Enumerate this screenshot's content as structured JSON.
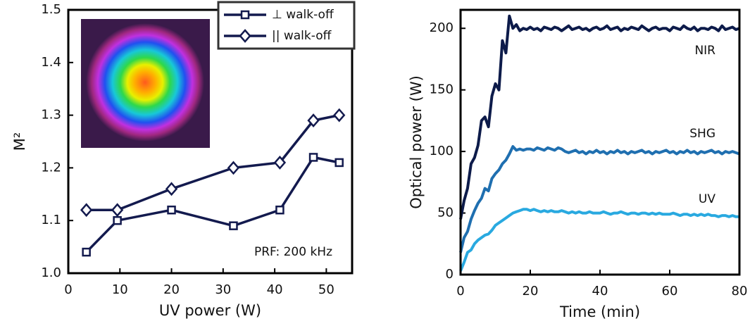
{
  "chart_data": [
    {
      "type": "line",
      "xlabel": "UV power (W)",
      "ylabel": "M²",
      "annotation": "PRF: 200 kHz",
      "x": [
        3.5,
        9.5,
        20,
        32,
        41,
        47.5,
        52.5
      ],
      "series": [
        {
          "name": "⊥ walk-off",
          "color": "#131a4e",
          "marker": "square",
          "values": [
            1.04,
            1.1,
            1.12,
            1.09,
            1.12,
            1.22,
            1.21
          ]
        },
        {
          "name": "|| walk-off",
          "color": "#131a4e",
          "marker": "diamond",
          "values": [
            1.12,
            1.12,
            1.16,
            1.2,
            1.21,
            1.29,
            1.3
          ]
        }
      ],
      "xlim": [
        0,
        55
      ],
      "xticks": [
        0,
        10,
        20,
        30,
        40,
        50
      ],
      "ylim": [
        1.0,
        1.5
      ],
      "yticks": [
        {
          "value": 1.0,
          "label": "1.0"
        },
        1.1,
        1.2,
        1.3,
        1.4,
        1.5
      ],
      "grid": false,
      "legend": "top-right"
    },
    {
      "type": "line",
      "xlabel": "Time (min)",
      "ylabel": "Optical power (W)",
      "x": [
        0,
        1,
        2,
        3,
        4,
        5,
        6,
        7,
        8,
        9,
        10,
        11,
        12,
        13,
        14,
        15,
        16,
        17,
        18,
        19,
        20,
        21,
        22,
        23,
        24,
        25,
        26,
        27,
        28,
        29,
        30,
        31,
        32,
        33,
        34,
        35,
        36,
        37,
        38,
        39,
        40,
        41,
        42,
        43,
        44,
        45,
        46,
        47,
        48,
        49,
        50,
        51,
        52,
        53,
        54,
        55,
        56,
        57,
        58,
        59,
        60,
        61,
        62,
        63,
        64,
        65,
        66,
        67,
        68,
        69,
        70,
        71,
        72,
        73,
        74,
        75,
        76,
        77,
        78,
        79,
        80
      ],
      "series": [
        {
          "name": "NIR",
          "color": "#0d1b4a",
          "values": [
            45,
            60,
            70,
            90,
            95,
            105,
            125,
            128,
            120,
            145,
            155,
            150,
            190,
            180,
            210,
            200,
            203,
            198,
            200,
            199,
            201,
            199,
            200,
            198,
            201,
            200,
            199,
            201,
            200,
            198,
            200,
            202,
            199,
            200,
            201,
            199,
            200,
            198,
            200,
            201,
            199,
            200,
            202,
            199,
            200,
            201,
            198,
            200,
            199,
            201,
            200,
            199,
            202,
            200,
            198,
            200,
            201,
            199,
            200,
            200,
            198,
            201,
            200,
            199,
            202,
            200,
            199,
            201,
            198,
            200,
            200,
            199,
            201,
            200,
            198,
            202,
            199,
            200,
            201,
            199,
            200
          ]
        },
        {
          "name": "SHG",
          "color": "#1f6fb0",
          "values": [
            18,
            30,
            35,
            45,
            52,
            58,
            62,
            70,
            68,
            78,
            82,
            85,
            90,
            93,
            98,
            104,
            101,
            102,
            101,
            102,
            102,
            101,
            103,
            102,
            101,
            103,
            102,
            101,
            103,
            102,
            100,
            99,
            100,
            101,
            99,
            100,
            98,
            100,
            99,
            101,
            99,
            100,
            98,
            100,
            99,
            101,
            99,
            100,
            98,
            100,
            99,
            100,
            101,
            99,
            100,
            98,
            100,
            99,
            100,
            101,
            99,
            100,
            98,
            100,
            99,
            101,
            99,
            100,
            98,
            100,
            99,
            100,
            101,
            99,
            100,
            98,
            100,
            99,
            100,
            99,
            98
          ]
        },
        {
          "name": "UV",
          "color": "#29a9e0",
          "values": [
            3,
            10,
            18,
            20,
            25,
            28,
            30,
            32,
            33,
            36,
            40,
            42,
            44,
            46,
            48,
            50,
            51,
            52,
            53,
            53,
            52,
            53,
            52,
            51,
            52,
            51,
            52,
            51,
            51,
            52,
            51,
            50,
            51,
            50,
            51,
            50,
            50,
            51,
            50,
            50,
            50,
            51,
            50,
            49,
            50,
            50,
            51,
            50,
            49,
            50,
            50,
            49,
            50,
            50,
            49,
            50,
            49,
            50,
            49,
            49,
            49,
            50,
            49,
            48,
            49,
            49,
            48,
            49,
            48,
            49,
            48,
            49,
            48,
            48,
            47,
            48,
            48,
            47,
            48,
            47,
            47
          ]
        }
      ],
      "xlim": [
        0,
        80
      ],
      "xticks": [
        0,
        20,
        40,
        60,
        80
      ],
      "ylim": [
        0,
        215
      ],
      "yticks": [
        0,
        50,
        100,
        150,
        200
      ],
      "grid": false
    }
  ]
}
